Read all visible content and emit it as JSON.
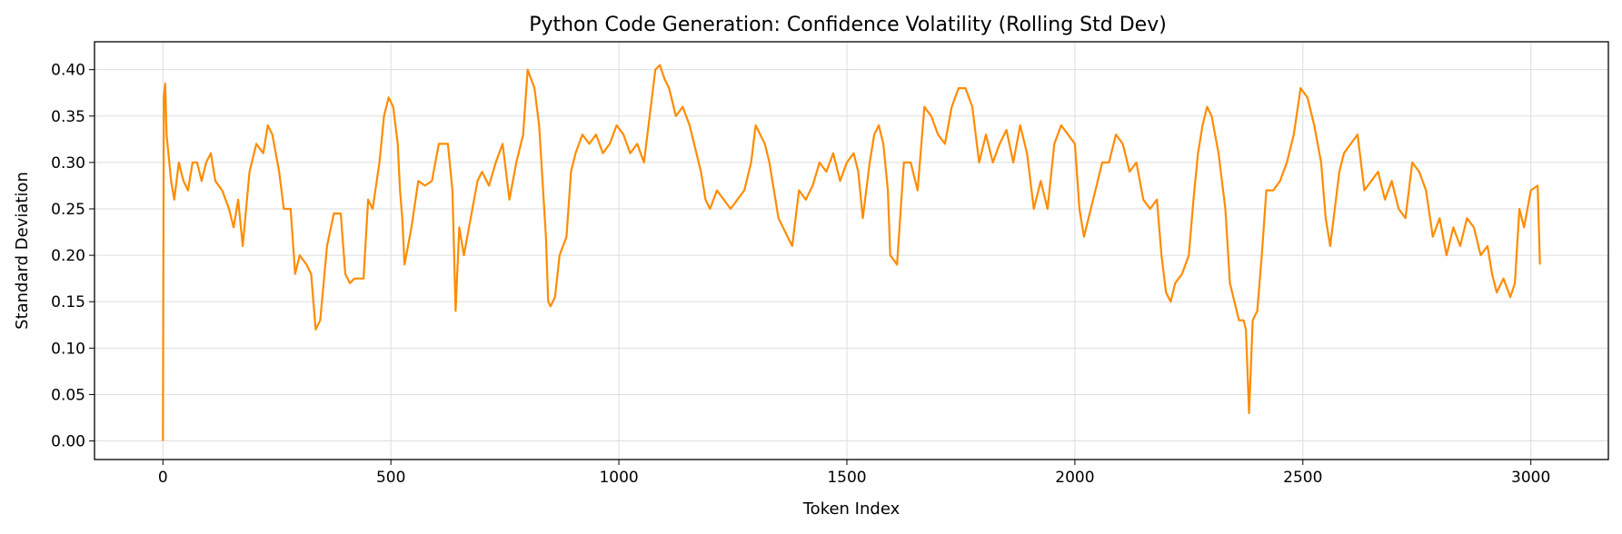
{
  "chart_data": {
    "type": "line",
    "title": "Python Code Generation: Confidence Volatility (Rolling Std Dev)",
    "xlabel": "Token Index",
    "ylabel": "Standard Deviation",
    "xlim": [
      -150,
      3170
    ],
    "ylim": [
      -0.02,
      0.43
    ],
    "xticks": [
      0,
      500,
      1000,
      1500,
      2000,
      2500,
      3000
    ],
    "xtick_labels": [
      "0",
      "500",
      "1000",
      "1500",
      "2000",
      "2500",
      "3000"
    ],
    "yticks": [
      0.0,
      0.05,
      0.1,
      0.15,
      0.2,
      0.25,
      0.3,
      0.35,
      0.4
    ],
    "ytick_labels": [
      "0.00",
      "0.05",
      "0.10",
      "0.15",
      "0.20",
      "0.25",
      "0.30",
      "0.35",
      "0.40"
    ],
    "grid": true,
    "series_color": "#ff8c00",
    "series": [
      {
        "x": [
          0,
          2,
          5,
          8,
          12,
          18,
          25,
          35,
          45,
          55,
          65,
          75,
          85,
          95,
          105,
          115,
          130,
          145,
          155,
          165,
          175,
          190,
          205,
          220,
          230,
          240,
          255,
          265,
          270,
          280,
          290,
          300,
          315,
          325,
          335,
          345,
          360,
          375,
          390,
          400,
          410,
          420,
          440,
          450,
          460,
          475,
          485,
          495,
          505,
          515,
          520,
          525,
          530,
          545,
          560,
          575,
          590,
          605,
          615,
          625,
          635,
          642,
          650,
          660,
          675,
          690,
          700,
          715,
          730,
          745,
          760,
          775,
          790,
          800,
          815,
          825,
          830,
          840,
          845,
          850,
          860,
          870,
          885,
          895,
          905,
          920,
          935,
          950,
          965,
          980,
          995,
          1010,
          1025,
          1040,
          1055,
          1070,
          1080,
          1090,
          1100,
          1110,
          1125,
          1140,
          1155,
          1170,
          1180,
          1190,
          1200,
          1215,
          1230,
          1245,
          1260,
          1275,
          1290,
          1300,
          1310,
          1320,
          1330,
          1340,
          1350,
          1360,
          1370,
          1380,
          1395,
          1410,
          1425,
          1440,
          1455,
          1470,
          1485,
          1500,
          1515,
          1525,
          1535,
          1550,
          1560,
          1570,
          1580,
          1590,
          1595,
          1610,
          1625,
          1640,
          1655,
          1670,
          1685,
          1700,
          1715,
          1730,
          1745,
          1760,
          1775,
          1790,
          1805,
          1820,
          1835,
          1850,
          1865,
          1880,
          1895,
          1910,
          1925,
          1940,
          1955,
          1970,
          1985,
          2000,
          2010,
          2020,
          2030,
          2045,
          2060,
          2075,
          2090,
          2105,
          2120,
          2135,
          2150,
          2165,
          2180,
          2190,
          2200,
          2210,
          2220,
          2235,
          2250,
          2260,
          2270,
          2280,
          2290,
          2300,
          2315,
          2330,
          2340,
          2350,
          2360,
          2370,
          2375,
          2382,
          2390,
          2400,
          2410,
          2420,
          2435,
          2450,
          2465,
          2480,
          2495,
          2510,
          2525,
          2540,
          2550,
          2560,
          2570,
          2580,
          2590,
          2605,
          2620,
          2635,
          2650,
          2665,
          2680,
          2695,
          2710,
          2725,
          2740,
          2755,
          2770,
          2785,
          2800,
          2815,
          2830,
          2845,
          2860,
          2875,
          2890,
          2905,
          2915,
          2925,
          2940,
          2955,
          2965,
          2975,
          2985,
          3000,
          3015,
          3020
        ],
        "y": [
          0.0,
          0.37,
          0.385,
          0.33,
          0.31,
          0.28,
          0.26,
          0.3,
          0.28,
          0.27,
          0.3,
          0.3,
          0.28,
          0.3,
          0.31,
          0.28,
          0.27,
          0.25,
          0.23,
          0.26,
          0.21,
          0.29,
          0.32,
          0.31,
          0.34,
          0.33,
          0.29,
          0.25,
          0.25,
          0.25,
          0.18,
          0.2,
          0.19,
          0.18,
          0.12,
          0.13,
          0.21,
          0.245,
          0.245,
          0.18,
          0.17,
          0.175,
          0.175,
          0.26,
          0.25,
          0.3,
          0.35,
          0.37,
          0.36,
          0.32,
          0.27,
          0.24,
          0.19,
          0.23,
          0.28,
          0.275,
          0.28,
          0.32,
          0.32,
          0.32,
          0.27,
          0.14,
          0.23,
          0.2,
          0.24,
          0.28,
          0.29,
          0.275,
          0.3,
          0.32,
          0.26,
          0.3,
          0.33,
          0.4,
          0.38,
          0.34,
          0.3,
          0.22,
          0.15,
          0.145,
          0.155,
          0.2,
          0.22,
          0.29,
          0.31,
          0.33,
          0.32,
          0.33,
          0.31,
          0.32,
          0.34,
          0.33,
          0.31,
          0.32,
          0.3,
          0.36,
          0.4,
          0.405,
          0.39,
          0.38,
          0.35,
          0.36,
          0.34,
          0.31,
          0.29,
          0.26,
          0.25,
          0.27,
          0.26,
          0.25,
          0.26,
          0.27,
          0.3,
          0.34,
          0.33,
          0.32,
          0.3,
          0.27,
          0.24,
          0.23,
          0.22,
          0.21,
          0.27,
          0.26,
          0.275,
          0.3,
          0.29,
          0.31,
          0.28,
          0.3,
          0.31,
          0.29,
          0.24,
          0.3,
          0.33,
          0.34,
          0.32,
          0.27,
          0.2,
          0.19,
          0.3,
          0.3,
          0.27,
          0.36,
          0.35,
          0.33,
          0.32,
          0.36,
          0.38,
          0.38,
          0.36,
          0.3,
          0.33,
          0.3,
          0.32,
          0.335,
          0.3,
          0.34,
          0.31,
          0.25,
          0.28,
          0.25,
          0.32,
          0.34,
          0.33,
          0.32,
          0.25,
          0.22,
          0.24,
          0.27,
          0.3,
          0.3,
          0.33,
          0.32,
          0.29,
          0.3,
          0.26,
          0.25,
          0.26,
          0.2,
          0.16,
          0.15,
          0.17,
          0.18,
          0.2,
          0.26,
          0.31,
          0.34,
          0.36,
          0.35,
          0.31,
          0.25,
          0.17,
          0.15,
          0.13,
          0.13,
          0.12,
          0.03,
          0.13,
          0.14,
          0.2,
          0.27,
          0.27,
          0.28,
          0.3,
          0.33,
          0.38,
          0.37,
          0.34,
          0.3,
          0.24,
          0.21,
          0.25,
          0.29,
          0.31,
          0.32,
          0.33,
          0.27,
          0.28,
          0.29,
          0.26,
          0.28,
          0.25,
          0.24,
          0.3,
          0.29,
          0.27,
          0.22,
          0.24,
          0.2,
          0.23,
          0.21,
          0.24,
          0.23,
          0.2,
          0.21,
          0.18,
          0.16,
          0.175,
          0.155,
          0.17,
          0.25,
          0.23,
          0.27,
          0.275,
          0.19
        ]
      }
    ]
  }
}
